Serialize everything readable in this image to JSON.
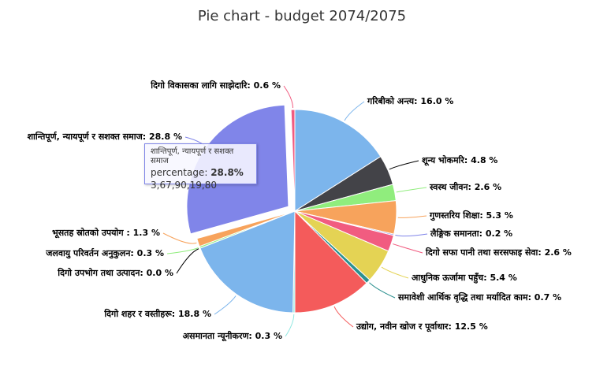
{
  "chart_data": {
    "type": "pie",
    "title": "Pie chart - budget 2074/2075",
    "slices": [
      {
        "label": "गरिबीको अन्त्य",
        "value": 16.0,
        "color": "#7cb5ec"
      },
      {
        "label": "शून्य भोकमरि",
        "value": 4.8,
        "color": "#434348"
      },
      {
        "label": "स्वस्थ जीवन",
        "value": 2.6,
        "color": "#90ed7d"
      },
      {
        "label": "गुणस्तरिय शिक्षा",
        "value": 5.3,
        "color": "#f7a35c"
      },
      {
        "label": "लैङ्गिक समानता",
        "value": 0.2,
        "color": "#8085e9"
      },
      {
        "label": "दिगो सफा पानी तथा सरसफाइ सेवा",
        "value": 2.6,
        "color": "#f15c80"
      },
      {
        "label": "आधुनिक ऊर्जामा पहुँच",
        "value": 5.4,
        "color": "#e4d354"
      },
      {
        "label": "समावेशी आर्थिक वृद्धि तथा मर्यादित काम",
        "value": 0.7,
        "color": "#2b908f"
      },
      {
        "label": "उद्योग, नवीन खोज र पूर्वाधार",
        "value": 12.5,
        "color": "#f45b5b"
      },
      {
        "label": "असमानता न्यूनीकरण",
        "value": 0.3,
        "color": "#91e8e1"
      },
      {
        "label": "दिगो शहर र वस्तीहरू",
        "value": 18.8,
        "color": "#7cb5ec"
      },
      {
        "label": "दिगो उपभोग तथा उत्पादन",
        "value": 0.0,
        "color": "#434348"
      },
      {
        "label": "जलवायु परिवर्तन अनुकुलन",
        "value": 0.3,
        "color": "#90ed7d"
      },
      {
        "label": "भूसतह स्रोतको उपयोग",
        "value": 1.3,
        "color": "#f7a35c"
      },
      {
        "label": "शान्तिपूर्ण, न्यायपूर्ण र सशक्त समाज",
        "value": 28.8,
        "color": "#8085e9",
        "sliced": true
      },
      {
        "label": "दिगो विकासका लागि साझेदारि",
        "value": 0.6,
        "color": "#f15c80"
      }
    ],
    "legend": "none"
  },
  "labels": [
    "गरिबीको अन्त्य: 16.0 %",
    "शून्य भोकमरि: 4.8 %",
    "स्वस्थ जीवन: 2.6 %",
    "गुणस्तरिय शिक्षा: 5.3 %",
    "लैङ्गिक समानता: 0.2 %",
    "दिगो सफा पानी तथा सरसफाइ सेवा: 2.6 %",
    "आधुनिक ऊर्जामा पहुँच: 5.4 %",
    "समावेशी आर्थिक वृद्धि तथा मर्यादित काम: 0.7 %",
    "उद्योग, नवीन खोज र पूर्वाधार: 12.5 %",
    "असमानता न्यूनीकरण: 0.3 %",
    "दिगो शहर र वस्तीहरू: 18.8 %",
    "दिगो उपभोग तथा उत्पादन: 0.0 %",
    "जलवायु परिवर्तन अनुकुलन: 0.3 %",
    "भूसतह स्रोतको उपयोग : 1.3 %",
    "शान्तिपूर्ण, न्यायपूर्ण र सशक्त समाज: 28.8 %",
    "दिगो विकासका लागि साझेदारि: 0.6 %"
  ],
  "tooltip": {
    "header": "शान्तिपूर्ण, न्यायपूर्ण र सशक्त समाज",
    "series_label": "percentage:",
    "value": "28.8%",
    "amount": "3,67,90,19,80"
  }
}
